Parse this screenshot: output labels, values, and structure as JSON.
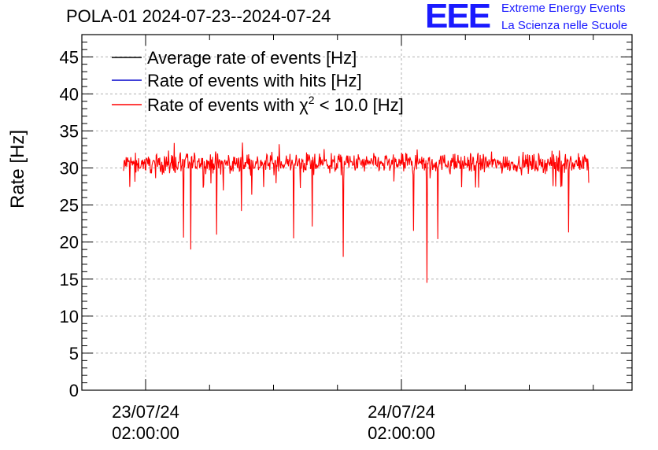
{
  "header": {
    "title": "POLA-01 2024-07-23--2024-07-24",
    "logo_text": "EEE",
    "logo_line1": "Extreme Energy Events",
    "logo_line2": "La Scienza nelle Scuole",
    "logo_color": "#1a1aff"
  },
  "chart_data": {
    "type": "line",
    "title": "POLA-01 2024-07-23--2024-07-24",
    "ylabel": "Rate [Hz]",
    "xlabel": "",
    "ylim": [
      0,
      48
    ],
    "yticks": [
      0,
      5,
      10,
      15,
      20,
      25,
      30,
      35,
      40,
      45
    ],
    "grid": true,
    "legend_position": "top-left",
    "x_tick_labels": [
      {
        "date": "23/07/24",
        "time": "02:00:00"
      },
      {
        "date": "24/07/24",
        "time": "02:00:00"
      }
    ],
    "series": [
      {
        "name": "Average rate of events [Hz]",
        "color": "#000000"
      },
      {
        "name": "Rate of events with hits [Hz]",
        "color": "#0000cc"
      },
      {
        "name": "Rate of events with χ² < 10.0 [Hz]",
        "name_prefix": "Rate of events with ",
        "name_symbol": "χ",
        "name_sup": "2",
        "name_suffix": " < 10.0 [Hz]",
        "color": "#ff0000"
      }
    ],
    "baseline_rate": 30.6,
    "noise_amplitude": 1.0,
    "dips": [
      {
        "t": 0.129,
        "value": 20.6
      },
      {
        "t": 0.144,
        "value": 19.0
      },
      {
        "t": 0.2,
        "value": 21.0
      },
      {
        "t": 0.253,
        "value": 24.2
      },
      {
        "t": 0.366,
        "value": 20.5
      },
      {
        "t": 0.405,
        "value": 22.1
      },
      {
        "t": 0.472,
        "value": 18.0
      },
      {
        "t": 0.623,
        "value": 21.5
      },
      {
        "t": 0.652,
        "value": 14.5
      },
      {
        "t": 0.675,
        "value": 20.4
      },
      {
        "t": 0.957,
        "value": 21.3
      }
    ]
  }
}
